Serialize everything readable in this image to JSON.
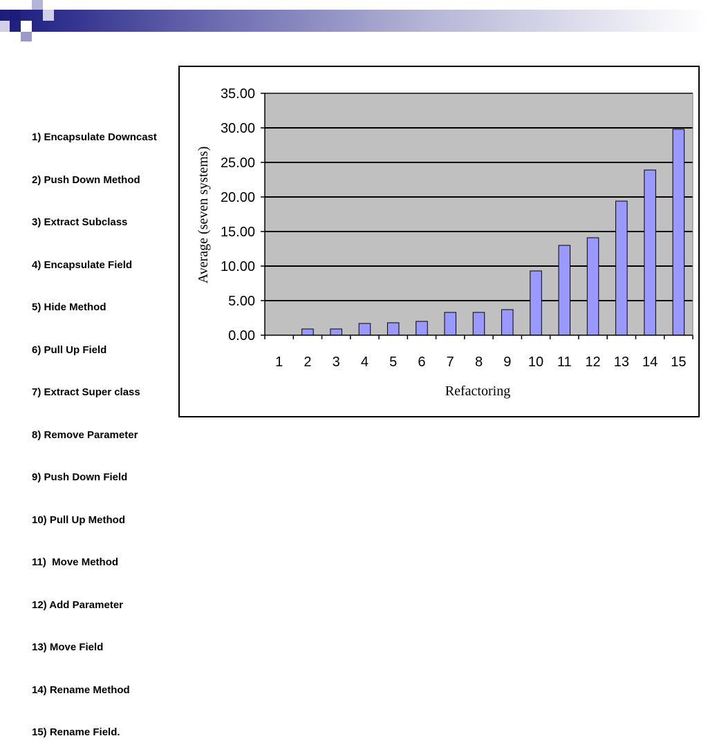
{
  "legend": {
    "items": [
      "1) Encapsulate Downcast",
      "2) Push Down Method",
      "3) Extract Subclass",
      "4) Encapsulate Field",
      "5) Hide Method",
      "6) Pull Up Field",
      "7) Extract Super class",
      "8) Remove Parameter",
      "9) Push Down Field",
      "10) Pull Up Method",
      "11)  Move Method",
      "12) Add Parameter",
      "13) Move Field",
      "14) Rename Method",
      "15) Rename Field."
    ]
  },
  "colors": {
    "header_dark": "#1c1c7a",
    "square_dark": "#1c1c7a",
    "square_light": "#9999cc",
    "plot_bg": "#c0c0c0",
    "bar_fill": "#9999ff",
    "bar_stroke": "#000000"
  },
  "chart_data": {
    "type": "bar",
    "categories": [
      "1",
      "2",
      "3",
      "4",
      "5",
      "6",
      "7",
      "8",
      "9",
      "10",
      "11",
      "12",
      "13",
      "14",
      "15"
    ],
    "values": [
      0.0,
      0.9,
      0.9,
      1.7,
      1.8,
      2.0,
      3.3,
      3.3,
      3.7,
      9.3,
      13.0,
      14.1,
      19.4,
      23.9,
      29.8
    ],
    "xlabel": "Refactoring",
    "ylabel": "Average (seven systems)",
    "ylim": [
      0,
      35
    ],
    "yticks": [
      "0.00",
      "5.00",
      "10.00",
      "15.00",
      "20.00",
      "25.00",
      "30.00",
      "35.00"
    ],
    "grid": true,
    "legend": "none"
  }
}
